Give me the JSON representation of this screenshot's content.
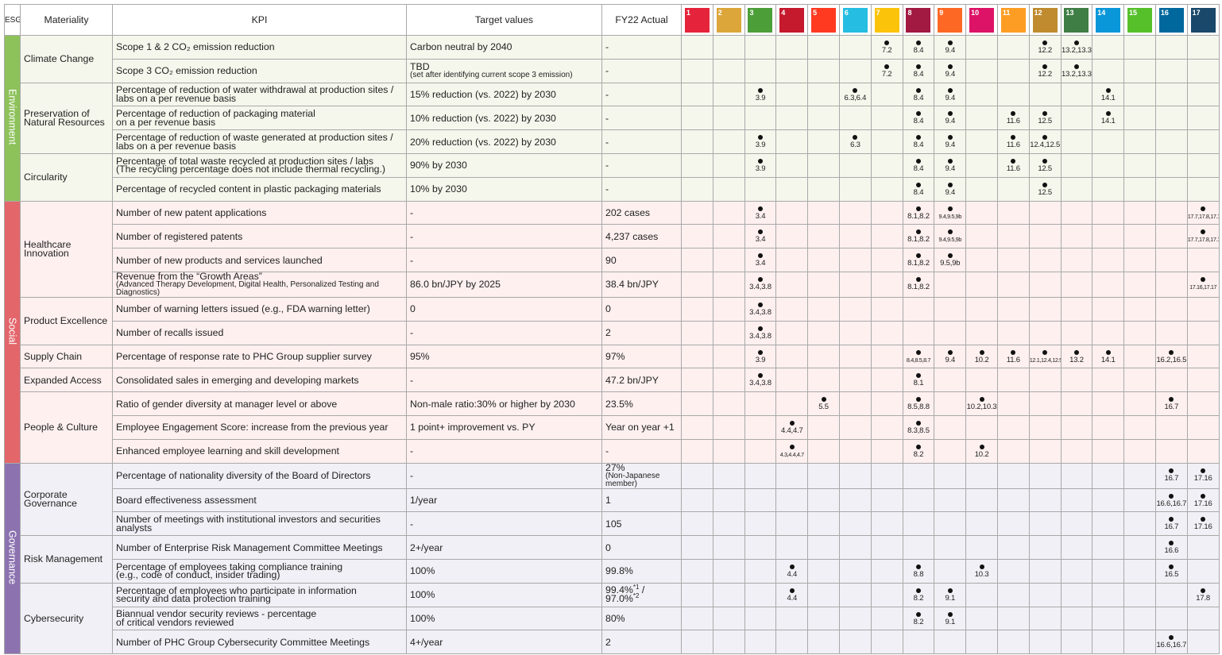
{
  "header": {
    "esg": "ESG",
    "materiality": "Materiality",
    "kpi": "KPI",
    "target": "Target values",
    "actual": "FY22 Actual",
    "sdgs": [
      "1",
      "2",
      "3",
      "4",
      "5",
      "6",
      "7",
      "8",
      "9",
      "10",
      "11",
      "12",
      "13",
      "14",
      "15",
      "16",
      "17"
    ]
  },
  "sections": [
    {
      "name": "Environment",
      "groups": [
        {
          "materiality": "Climate Change",
          "rows": [
            {
              "kpi": "Scope 1 & 2 CO₂ emission reduction",
              "target": "Carbon neutral by 2040",
              "actual": "-",
              "sdg": {
                "7": "7.2",
                "8": "8.4",
                "9": "9.4",
                "12": "12.2",
                "13": "13.2,13.3"
              }
            },
            {
              "kpi": "Scope 3 CO₂ emission reduction",
              "target": {
                "text": "TBD",
                "note": "(set after identifying current scope 3 emission)"
              },
              "actual": "-",
              "sdg": {
                "7": "7.2",
                "8": "8.4",
                "9": "9.4",
                "12": "12.2",
                "13": "13.2,13.3"
              }
            }
          ]
        },
        {
          "materiality": "Preservation of\nNatural Resources",
          "rows": [
            {
              "kpi": "Percentage of reduction of water withdrawal at production sites /\nlabs on a per revenue basis",
              "target": "15% reduction (vs. 2022) by 2030",
              "actual": "-",
              "sdg": {
                "3": "3.9",
                "6": "6.3,6.4",
                "8": "8.4",
                "9": "9.4",
                "14": "14.1"
              }
            },
            {
              "kpi": "Percentage of reduction of packaging material\non a per revenue basis",
              "target": "10% reduction (vs. 2022) by 2030",
              "actual": "-",
              "sdg": {
                "8": "8.4",
                "9": "9.4",
                "11": "11.6",
                "12": "12.5",
                "14": "14.1"
              }
            },
            {
              "kpi": "Percentage of reduction of waste generated at production sites /\nlabs on a per revenue basis",
              "target": "20% reduction (vs. 2022) by 2030",
              "actual": "-",
              "sdg": {
                "3": "3.9",
                "6": "6.3",
                "8": "8.4",
                "9": "9.4",
                "11": "11.6",
                "12": "12.4,12.5"
              }
            }
          ]
        },
        {
          "materiality": "Circularity",
          "rows": [
            {
              "kpi": "Percentage of total waste recycled at production sites / labs\n(The recycling percentage does not include thermal recycling.)",
              "target": "90% by 2030",
              "actual": "-",
              "sdg": {
                "3": "3.9",
                "8": "8.4",
                "9": "9.4",
                "11": "11.6",
                "12": "12.5"
              }
            },
            {
              "kpi": "Percentage of recycled content in plastic packaging materials",
              "target": "10% by 2030",
              "actual": "-",
              "sdg": {
                "8": "8.4",
                "9": "9.4",
                "12": "12.5"
              }
            }
          ]
        }
      ]
    },
    {
      "name": "Social",
      "groups": [
        {
          "materiality": "Healthcare\nInnovation",
          "rows": [
            {
              "kpi": "Number of new patent applications",
              "target": "-",
              "actual": "202 cases",
              "sdg": {
                "3": "3.4",
                "8": "8.1,8.2",
                "9": "9.4,9.5,9b",
                "17": "17.7,17.8,17.16"
              }
            },
            {
              "kpi": "Number of registered patents",
              "target": "-",
              "actual": "4,237 cases",
              "sdg": {
                "3": "3.4",
                "8": "8.1,8.2",
                "9": "9.4,9.5,9b",
                "17": "17.7,17.8,17.16"
              }
            },
            {
              "kpi": "Number of new products and services launched",
              "target": "-",
              "actual": "90",
              "sdg": {
                "3": "3.4",
                "8": "8.1,8.2",
                "9": "9.5,9b"
              }
            },
            {
              "kpi": {
                "text": "Revenue from the “Growth Areas”",
                "note": "(Advanced Therapy Development, Digital Health, Personalized Testing and Diagnostics)"
              },
              "target": "86.0 bn/JPY by 2025",
              "actual": "38.4 bn/JPY",
              "sdg": {
                "3": "3.4,3.8",
                "8": "8.1,8.2",
                "17": "17.16,17.17"
              }
            }
          ]
        },
        {
          "materiality": "Product Excellence",
          "rows": [
            {
              "kpi": "Number of warning letters issued (e.g., FDA warning letter)",
              "target": "0",
              "actual": "0",
              "sdg": {
                "3": "3.4,3.8"
              }
            },
            {
              "kpi": "Number of recalls issued",
              "target": "-",
              "actual": "2",
              "sdg": {
                "3": "3.4,3.8"
              }
            }
          ]
        },
        {
          "materiality": "Supply Chain",
          "rows": [
            {
              "kpi": "Percentage of response rate to PHC Group supplier survey",
              "target": "95%",
              "actual": "97%",
              "sdg": {
                "3": "3.9",
                "8": "8.4,8.5,8.7",
                "9": "9.4",
                "10": "10.2",
                "11": "11.6",
                "12": "12.1,12.4,12.5",
                "13": "13.2",
                "14": "14.1",
                "16": "16.2,16.5"
              }
            }
          ]
        },
        {
          "materiality": "Expanded Access",
          "rows": [
            {
              "kpi": "Consolidated sales in emerging and developing markets",
              "target": "-",
              "actual": "47.2 bn/JPY",
              "sdg": {
                "3": "3.4,3.8",
                "8": "8.1"
              }
            }
          ]
        },
        {
          "materiality": "People & Culture",
          "rows": [
            {
              "kpi": "Ratio of gender diversity at manager level or above",
              "target": "Non-male ratio:30% or higher by 2030",
              "actual": "23.5%",
              "sdg": {
                "5": "5.5",
                "8": "8.5,8.8",
                "10": "10.2,10.3",
                "16": "16.7"
              }
            },
            {
              "kpi": "Employee Engagement Score: increase from the previous year",
              "target": "1 point+ improvement vs. PY",
              "actual": "Year on year +1",
              "sdg": {
                "4": "4.4,4.7",
                "8": "8.3,8.5"
              }
            },
            {
              "kpi": "Enhanced employee learning and skill development",
              "target": "-",
              "actual": "-",
              "sdg": {
                "4": "4.3,4.4,4.7",
                "8": "8.2",
                "10": "10.2"
              }
            }
          ]
        }
      ]
    },
    {
      "name": "Governance",
      "groups": [
        {
          "materiality": "Corporate\nGovernance",
          "rows": [
            {
              "kpi": "Percentage of nationality diversity of the Board of Directors",
              "target": "-",
              "actual": {
                "text": "27%",
                "note": "(Non-Japanese member)"
              },
              "sdg": {
                "16": "16.7",
                "17": "17.16"
              }
            },
            {
              "kpi": "Board effectiveness assessment",
              "target": "1/year",
              "actual": "1",
              "sdg": {
                "16": "16.6,16.7",
                "17": "17.16"
              }
            },
            {
              "kpi": "Number of meetings with institutional investors and securities\nanalysts",
              "target": "-",
              "actual": "105",
              "sdg": {
                "16": "16.7",
                "17": "17.16"
              }
            }
          ]
        },
        {
          "materiality": "Risk Management",
          "rows": [
            {
              "kpi": "Number of Enterprise Risk Management Committee Meetings",
              "target": "2+/year",
              "actual": "0",
              "sdg": {
                "16": "16.6"
              }
            },
            {
              "kpi": "Percentage of employees taking compliance training\n(e.g., code of conduct, insider trading)",
              "target": "100%",
              "actual": "99.8%",
              "sdg": {
                "4": "4.4",
                "8": "8.8",
                "10": "10.3",
                "16": "16.5"
              }
            }
          ]
        },
        {
          "materiality": "Cybersecurity",
          "rows": [
            {
              "kpi": "Percentage of employees who participate in information\nsecurity and data protection training",
              "target": "100%",
              "actual": {
                "lines": [
                  [
                    "99.4%",
                    "*1",
                    " /"
                  ],
                  [
                    "97.0%",
                    "*2"
                  ]
                ]
              },
              "sdg": {
                "4": "4.4",
                "8": "8.2",
                "9": "9.1",
                "17": "17.8"
              }
            },
            {
              "kpi": "Biannual vendor security reviews - percentage\nof critical vendors reviewed",
              "target": "100%",
              "actual": "80%",
              "sdg": {
                "8": "8.2",
                "9": "9.1"
              }
            },
            {
              "kpi": "Number of PHC Group Cybersecurity Committee Meetings",
              "target": "4+/year",
              "actual": "2",
              "sdg": {
                "16": "16.6,16.7"
              }
            }
          ]
        }
      ]
    }
  ]
}
